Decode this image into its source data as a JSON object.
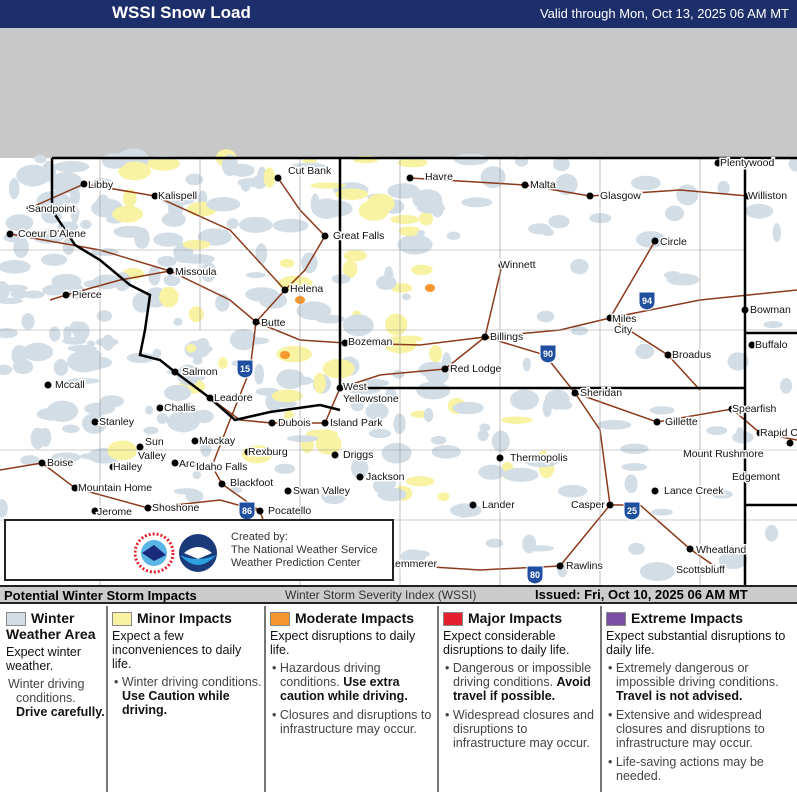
{
  "header": {
    "title": "WSSI Snow Load",
    "valid": "Valid through Mon, Oct 13, 2025 06 AM MT"
  },
  "map": {
    "cities": [
      "Cut Bank",
      "Havre",
      "Malta",
      "Glasgow",
      "Plentywood",
      "Williston",
      "Libby",
      "Kalispell",
      "Sandpoint",
      "Coeur D'Alene",
      "Great Falls",
      "Circle",
      "Missoula",
      "Winnett",
      "Helena",
      "Pierce",
      "Miles",
      "City",
      "Bowman",
      "Butte",
      "Bozeman",
      "Billings",
      "Buffalo",
      "Broadus",
      "Salmon",
      "Red Lodge",
      "Mccall",
      "West",
      "Yellowstone",
      "Sheridan",
      "Leadore",
      "Challis",
      "Spearfish",
      "Island Park",
      "Dubois",
      "Gillette",
      "Stanley",
      "Rapid City",
      "Mackay",
      "Sun",
      "Valley",
      "Rexburg",
      "Driggs",
      "Thermopolis",
      "Mount Rushmore",
      "Arco",
      "Boise",
      "Hailey",
      "Idaho Falls",
      "Jackson",
      "Edgemont",
      "Blackfoot",
      "Swan Valley",
      "Mountain Home",
      "Lance Creek",
      "Shoshone",
      "Lander",
      "Casper",
      "Jerome",
      "Pocatello",
      "Wheatland",
      "Rawlins",
      "Scottsbluff",
      "Kemmerer"
    ],
    "interstates": [
      "94",
      "90",
      "15",
      "86",
      "25",
      "80"
    ],
    "colors": {
      "winter_area": "#d3dde6",
      "minor": "#f7f3a2",
      "moderate": "#f7962f",
      "major": "#e4202e",
      "extreme": "#7a4ea3",
      "roads": "#8b3a1a",
      "interstate": "#1f4f9e"
    }
  },
  "credit": {
    "line1": "Created by:",
    "line2": "The National Weather Service",
    "line3": "Weather Prediction Center",
    "logos": [
      "NWS",
      "NOAA"
    ]
  },
  "legend_bar": {
    "title": "Potential Winter Storm Impacts",
    "index": "Winter Storm Severity Index (WSSI)",
    "issued": "Issued: Fri, Oct 10, 2025 06 AM MT"
  },
  "legend": [
    {
      "label": "Winter Weather Area",
      "color": "#d3dde6",
      "desc": "Expect winter weather.",
      "bullets": [
        {
          "t": "Winter driving conditions. ",
          "b": "Drive carefully."
        }
      ]
    },
    {
      "label": "Minor Impacts",
      "color": "#f7f3a2",
      "desc": "Expect a few inconveniences to daily life.",
      "bullets": [
        {
          "t": "Winter driving conditions. ",
          "b": "Use Caution while driving."
        }
      ]
    },
    {
      "label": "Moderate Impacts",
      "color": "#f7962f",
      "desc": "Expect disruptions to daily life.",
      "bullets": [
        {
          "t": "Hazardous driving conditions. ",
          "b": "Use extra caution while driving."
        },
        {
          "t": "Closures and disruptions to infrastructure may occur.",
          "b": ""
        }
      ]
    },
    {
      "label": "Major Impacts",
      "color": "#e4202e",
      "desc": "Expect considerable disruptions to daily life.",
      "bullets": [
        {
          "t": "Dangerous or impossible driving conditions. ",
          "b": "Avoid travel if possible."
        },
        {
          "t": "Widespread closures and disruptions to infrastructure may occur.",
          "b": ""
        }
      ]
    },
    {
      "label": "Extreme Impacts",
      "color": "#7a4ea3",
      "desc": "Expect substantial disruptions to daily life.",
      "bullets": [
        {
          "t": "Extremely dangerous or impossible driving conditions. ",
          "b": "Travel is not advised."
        },
        {
          "t": "Extensive and widespread closures and disruptions to infrastructure may occur.",
          "b": ""
        },
        {
          "t": "Life-saving actions may be needed.",
          "b": ""
        }
      ]
    }
  ]
}
